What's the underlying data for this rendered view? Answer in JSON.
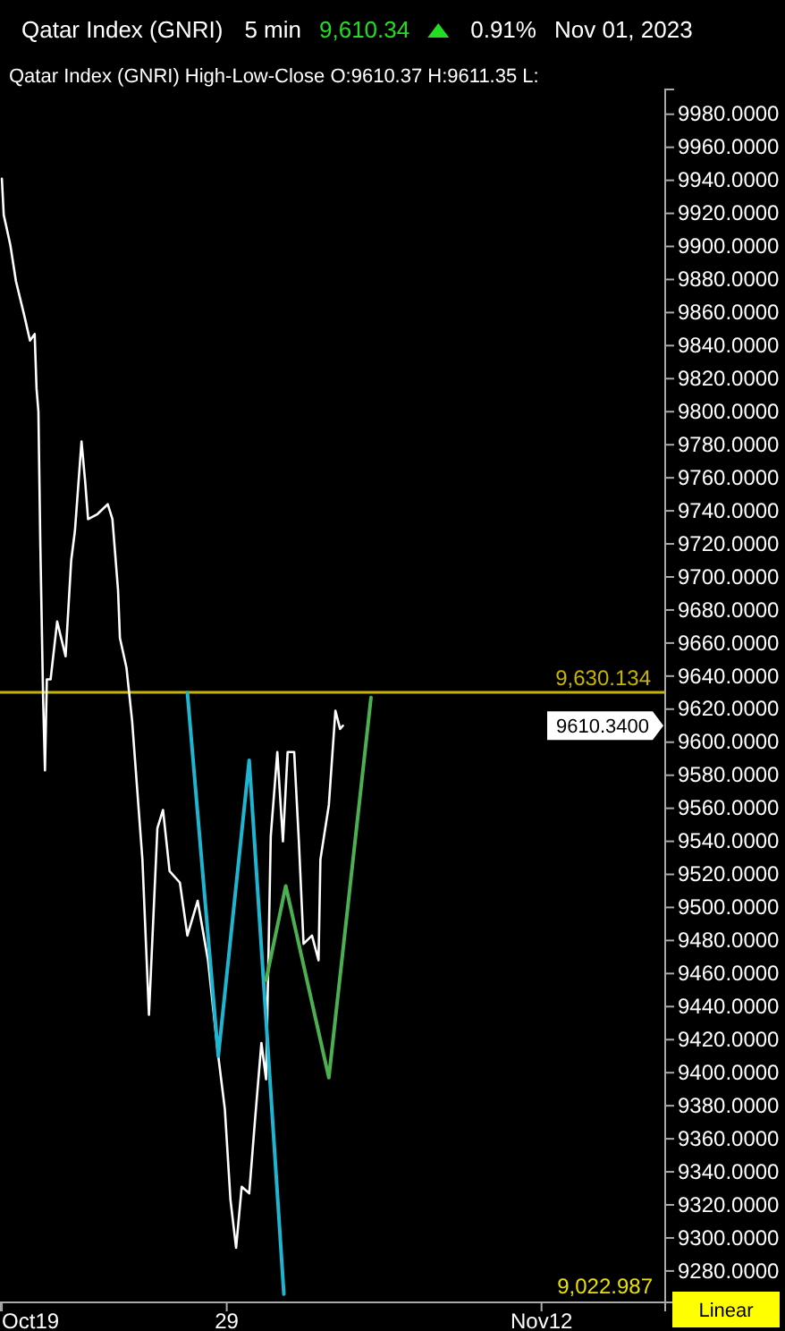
{
  "chart_data": {
    "type": "line",
    "title": "Qatar Index  (GNRI)",
    "subtitle": "Qatar Index (GNRI)  High-Low-Close    O:9610.37  H:9611.35  L:",
    "annotations": [
      "5 min",
      "9,610.34",
      "0.91%",
      "Nov 01, 2023",
      "9,022.987",
      "Linear",
      "9610.3400"
    ],
    "xlim": [
      "2023-10-18T22:00",
      "2023-11-17T12:00"
    ],
    "xticks": [
      {
        "value": "2023-10-19",
        "label": "Oct19"
      },
      {
        "value": "2023-10-29",
        "label": "29"
      },
      {
        "value": "2023-11-12",
        "label": "Nov12"
      }
    ],
    "ylim": [
      9261,
      9995
    ],
    "yticks": [
      {
        "value": 9280,
        "label": "9280.0000"
      },
      {
        "value": 9300,
        "label": "9300.0000"
      },
      {
        "value": 9320,
        "label": "9320.0000"
      },
      {
        "value": 9340,
        "label": "9340.0000"
      },
      {
        "value": 9360,
        "label": "9360.0000"
      },
      {
        "value": 9380,
        "label": "9380.0000"
      },
      {
        "value": 9400,
        "label": "9400.0000"
      },
      {
        "value": 9420,
        "label": "9420.0000"
      },
      {
        "value": 9440,
        "label": "9440.0000"
      },
      {
        "value": 9460,
        "label": "9460.0000"
      },
      {
        "value": 9480,
        "label": "9480.0000"
      },
      {
        "value": 9500,
        "label": "9500.0000"
      },
      {
        "value": 9520,
        "label": "9520.0000"
      },
      {
        "value": 9540,
        "label": "9540.0000"
      },
      {
        "value": 9560,
        "label": "9560.0000"
      },
      {
        "value": 9580,
        "label": "9580.0000"
      },
      {
        "value": 9600,
        "label": "9600.0000"
      },
      {
        "value": 9620,
        "label": "9620.0000"
      },
      {
        "value": 9640,
        "label": "9640.0000"
      },
      {
        "value": 9660,
        "label": "9660.0000"
      },
      {
        "value": 9680,
        "label": "9680.0000"
      },
      {
        "value": 9700,
        "label": "9700.0000"
      },
      {
        "value": 9720,
        "label": "9720.0000"
      },
      {
        "value": 9740,
        "label": "9740.0000"
      },
      {
        "value": 9760,
        "label": "9760.0000"
      },
      {
        "value": 9780,
        "label": "9780.0000"
      },
      {
        "value": 9800,
        "label": "9800.0000"
      },
      {
        "value": 9820,
        "label": "9820.0000"
      },
      {
        "value": 9840,
        "label": "9840.0000"
      },
      {
        "value": 9860,
        "label": "9860.0000"
      },
      {
        "value": 9880,
        "label": "9880.0000"
      },
      {
        "value": 9900,
        "label": "9900.0000"
      },
      {
        "value": 9920,
        "label": "9920.0000"
      },
      {
        "value": 9940,
        "label": "9940.0000"
      },
      {
        "value": 9960,
        "label": "9960.0000"
      },
      {
        "value": 9980,
        "label": "9980.0000"
      }
    ],
    "grid": false,
    "marker": "none",
    "ref_lines": [
      {
        "axis": "y",
        "value": 9630.134,
        "label": "9,630.134",
        "color": "#c8b400"
      }
    ],
    "series": [
      {
        "color": "#ffffff",
        "x": [
          "2023-10-19T00:00",
          "2023-10-19T02:00",
          "2023-10-19T09:00",
          "2023-10-19T15:00",
          "2023-10-20T00:00",
          "2023-10-20T06:00",
          "2023-10-20T11:00",
          "2023-10-20T13:00",
          "2023-10-20T15:00",
          "2023-10-20T17:00",
          "2023-10-20T20:00",
          "2023-10-20T22:00",
          "2023-10-21T00:00",
          "2023-10-21T04:00",
          "2023-10-21T11:00",
          "2023-10-21T20:00",
          "2023-10-22T02:00",
          "2023-10-22T06:00",
          "2023-10-22T13:00",
          "2023-10-22T17:00",
          "2023-10-22T20:00",
          "2023-10-23T06:00",
          "2023-10-23T17:00",
          "2023-10-23T22:00",
          "2023-10-24T04:00",
          "2023-10-24T06:00",
          "2023-10-24T13:00",
          "2023-10-24T19:00",
          "2023-10-25T06:00",
          "2023-10-25T13:00",
          "2023-10-25T22:00",
          "2023-10-26T04:00",
          "2023-10-26T11:00",
          "2023-10-26T22:00",
          "2023-10-27T06:00",
          "2023-10-27T17:00",
          "2023-10-28T04:00",
          "2023-10-28T15:00",
          "2023-10-28T22:00",
          "2023-10-29T04:00",
          "2023-10-29T10:00",
          "2023-10-29T16:00",
          "2023-10-30T00:00",
          "2023-10-30T06:00",
          "2023-10-30T13:00",
          "2023-10-30T18:00",
          "2023-10-30T23:00",
          "2023-10-31T06:00",
          "2023-10-31T12:00",
          "2023-10-31T17:00",
          "2023-11-01T00:00",
          "2023-11-01T05:00",
          "2023-11-01T10:00",
          "2023-11-01T19:00",
          "2023-11-02T02:00",
          "2023-11-02T04:00",
          "2023-11-02T13:00",
          "2023-11-02T20:00",
          "2023-11-03T01:00",
          "2023-11-03T04:00"
        ],
        "values": [
          9941,
          9919,
          9901,
          9879,
          9858,
          9843,
          9847,
          9814,
          9800,
          9721,
          9627,
          9583,
          9638,
          9638,
          9673,
          9652,
          9710,
          9728,
          9782,
          9757,
          9735,
          9738,
          9744,
          9735,
          9692,
          9663,
          9645,
          9613,
          9529,
          9435,
          9548,
          9559,
          9522,
          9515,
          9483,
          9504,
          9468,
          9410,
          9378,
          9323,
          9294,
          9331,
          9327,
          9370,
          9418,
          9396,
          9543,
          9594,
          9540,
          9594,
          9594,
          9540,
          9478,
          9483,
          9468,
          9529,
          9562,
          9619,
          9608,
          9610
        ]
      },
      {
        "color": "#1fb5d0",
        "x": [
          "2023-10-27T06:00",
          "2023-10-28T15:00",
          "2023-10-30T00:00",
          "2023-10-31T13:00"
        ],
        "values": [
          9630,
          9410,
          9589,
          9266
        ]
      },
      {
        "color": "#4caf50",
        "x": [
          "2023-10-30T18:00",
          "2023-10-31T15:00",
          "2023-11-02T13:00",
          "2023-11-04T10:00"
        ],
        "values": [
          9456,
          9513,
          9397,
          9627
        ]
      }
    ]
  }
}
